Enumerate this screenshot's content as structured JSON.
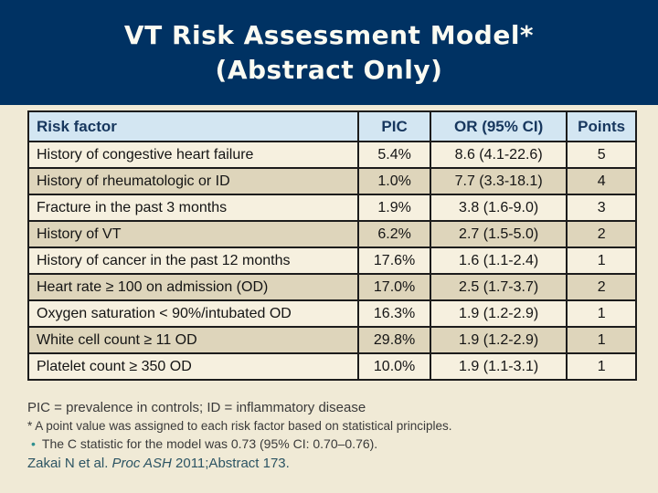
{
  "slide": {
    "title_line1": "VT Risk Assessment Model*",
    "title_line2": "(Abstract Only)",
    "table": {
      "headers": [
        "Risk factor",
        "PIC",
        "OR (95% CI)",
        "Points"
      ],
      "rows": [
        [
          "History of congestive heart failure",
          "5.4%",
          "8.6 (4.1-22.6)",
          "5"
        ],
        [
          "History of rheumatologic or ID",
          "1.0%",
          "7.7 (3.3-18.1)",
          "4"
        ],
        [
          "Fracture in the past 3 months",
          "1.9%",
          "3.8 (1.6-9.0)",
          "3"
        ],
        [
          "History of VT",
          "6.2%",
          "2.7 (1.5-5.0)",
          "2"
        ],
        [
          "History of cancer in the past 12 months",
          "17.6%",
          "1.6 (1.1-2.4)",
          "1"
        ],
        [
          "Heart rate ≥ 100 on admission (OD)",
          "17.0%",
          "2.5 (1.7-3.7)",
          "2"
        ],
        [
          "Oxygen saturation < 90%/intubated OD",
          "16.3%",
          "1.9 (1.2-2.9)",
          "1"
        ],
        [
          "White cell count ≥ 11 OD",
          "29.8%",
          "1.9 (1.2-2.9)",
          "1"
        ],
        [
          "Platelet count ≥ 350 OD",
          "10.0%",
          "1.9 (1.1-3.1)",
          "1"
        ]
      ]
    },
    "footnotes": {
      "abbreviations": "PIC = prevalence in controls; ID = inflammatory disease",
      "asterisk_note": "* A point value was assigned to each risk factor based on statistical principles.",
      "bullet_glyph": "•",
      "bullet_note": "The C statistic for the model was 0.73 (95% CI: 0.70–0.76).",
      "citation_prefix": "Zakai N et al. ",
      "citation_italic": "Proc ASH",
      "citation_suffix": " 2011;Abstract 173."
    },
    "colors": {
      "band_navy": "#003263",
      "body_cream": "#f0ead6",
      "header_blue": "#d3e6f2",
      "row_light": "#f6f0df",
      "row_dark": "#ded5bb",
      "header_text_navy": "#17375e",
      "bullet_teal": "#2e8f8f",
      "citation_color": "#2c5463"
    }
  }
}
